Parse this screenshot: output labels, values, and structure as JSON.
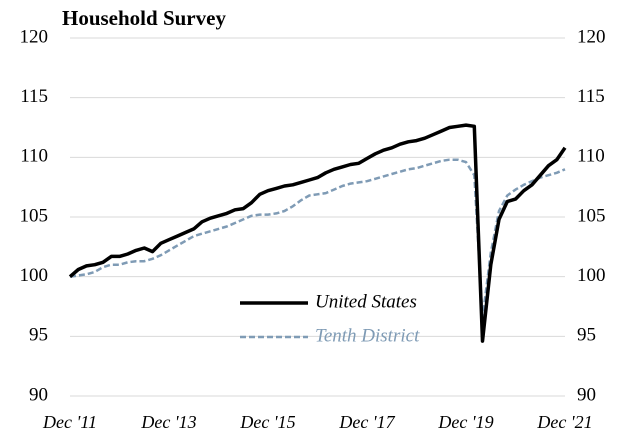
{
  "chart_data": {
    "type": "line",
    "title": "Household Survey",
    "categories": [
      "Dec '11",
      null,
      null,
      null,
      null,
      null,
      null,
      null,
      null,
      null,
      null,
      null,
      "Dec '13",
      null,
      null,
      null,
      null,
      null,
      null,
      null,
      null,
      null,
      null,
      null,
      "Dec '15",
      null,
      null,
      null,
      null,
      null,
      null,
      null,
      null,
      null,
      null,
      null,
      "Dec '17",
      null,
      null,
      null,
      null,
      null,
      null,
      null,
      null,
      null,
      null,
      null,
      "Dec '19",
      null,
      null,
      null,
      null,
      null,
      null,
      null,
      null,
      null,
      null,
      null,
      "Dec '21"
    ],
    "series": [
      {
        "name": "United States",
        "color": "#000000",
        "dash": false,
        "values": [
          100.0,
          100.6,
          100.9,
          101.0,
          101.2,
          101.7,
          101.7,
          101.9,
          102.2,
          102.4,
          102.1,
          102.8,
          103.1,
          103.4,
          103.7,
          104.0,
          104.6,
          104.9,
          105.1,
          105.3,
          105.6,
          105.7,
          106.2,
          106.9,
          107.2,
          107.4,
          107.6,
          107.7,
          107.9,
          108.1,
          108.3,
          108.7,
          109.0,
          109.2,
          109.4,
          109.5,
          109.9,
          110.3,
          110.6,
          110.8,
          111.1,
          111.3,
          111.4,
          111.6,
          111.9,
          112.2,
          112.5,
          112.6,
          112.7,
          112.6,
          94.6,
          101.0,
          104.8,
          106.3,
          106.5,
          107.2,
          107.7,
          108.5,
          109.3,
          109.8,
          110.8
        ]
      },
      {
        "name": "Tenth District",
        "color": "#7f9bb5",
        "dash": true,
        "values": [
          100.0,
          100.1,
          100.2,
          100.4,
          100.8,
          101.0,
          101.0,
          101.2,
          101.3,
          101.3,
          101.5,
          101.8,
          102.2,
          102.6,
          103.0,
          103.4,
          103.6,
          103.8,
          104.0,
          104.2,
          104.5,
          104.8,
          105.1,
          105.2,
          105.2,
          105.3,
          105.5,
          105.9,
          106.4,
          106.8,
          106.9,
          107.0,
          107.3,
          107.6,
          107.8,
          107.9,
          108.0,
          108.2,
          108.4,
          108.6,
          108.8,
          109.0,
          109.1,
          109.3,
          109.5,
          109.7,
          109.8,
          109.8,
          109.6,
          108.5,
          96.5,
          102.0,
          105.5,
          106.8,
          107.3,
          107.7,
          108.0,
          108.3,
          108.5,
          108.7,
          109.0
        ]
      }
    ],
    "ylim": [
      90,
      120
    ],
    "yticks": [
      90,
      95,
      100,
      105,
      110,
      115,
      120
    ],
    "y2lim": [
      90,
      120
    ],
    "y2ticks": [
      90,
      95,
      100,
      105,
      110,
      115,
      120
    ],
    "grid": true
  }
}
